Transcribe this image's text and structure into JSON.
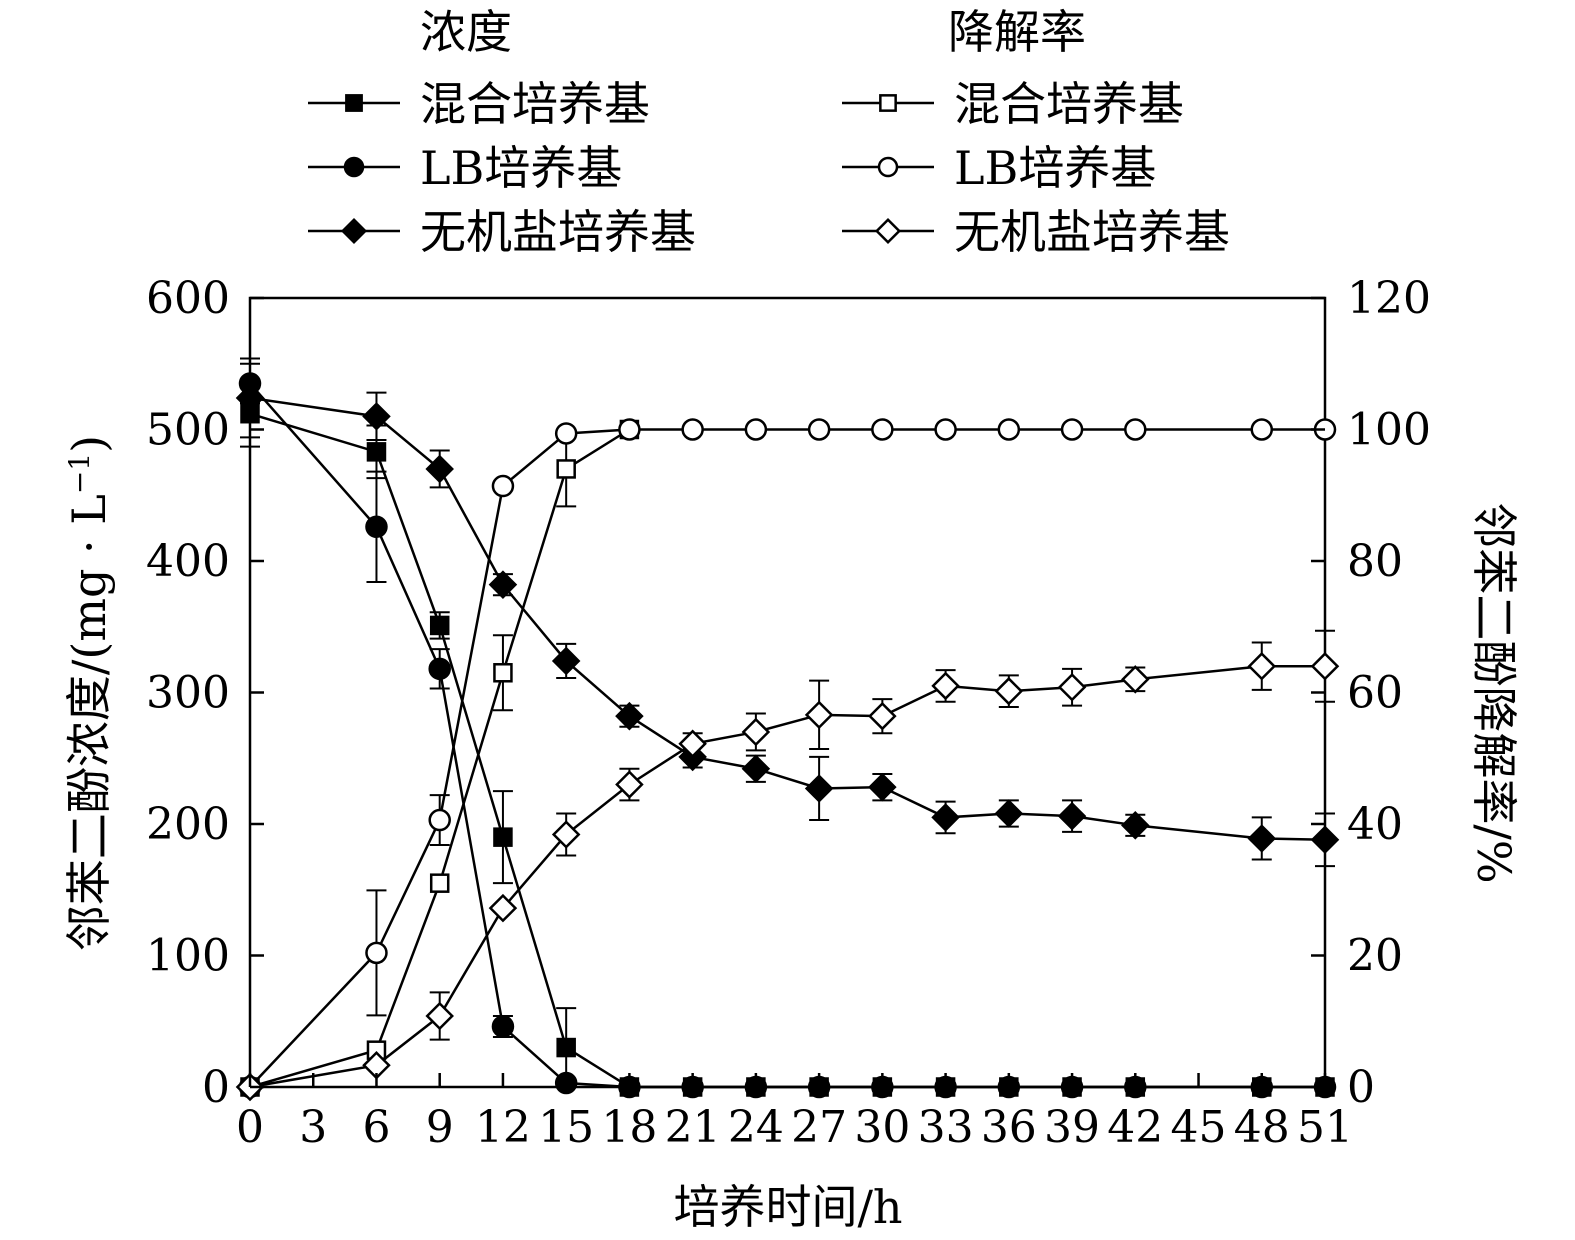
{
  "chart_data": {
    "type": "line",
    "legend": {
      "placement": "top",
      "group_titles": {
        "concentration": "浓度",
        "degradation": "降解率"
      },
      "entries": [
        {
          "series": "conc_mixed",
          "label": "混合培养基"
        },
        {
          "series": "conc_lb",
          "label": "LB培养基"
        },
        {
          "series": "conc_min",
          "label": "无机盐培养基"
        },
        {
          "series": "deg_mixed",
          "label": "混合培养基"
        },
        {
          "series": "deg_lb",
          "label": "LB培养基"
        },
        {
          "series": "deg_min",
          "label": "无机盐培养基"
        }
      ]
    },
    "xlabel": "培养时间/h",
    "ylabel_left": "邻苯二酚浓度/(mg · L",
    "ylabel_left_sup": "−1",
    "ylabel_left_close": ")",
    "ylabel_right": "邻苯二酚降解率/%",
    "x_ticks": [
      0,
      3,
      6,
      9,
      12,
      15,
      18,
      21,
      24,
      27,
      30,
      33,
      36,
      39,
      42,
      45,
      48,
      51
    ],
    "y_left_ticks": [
      0,
      100,
      200,
      300,
      400,
      500,
      600
    ],
    "y_right_ticks": [
      0,
      20,
      40,
      60,
      80,
      100,
      120
    ],
    "xlim": [
      0,
      51
    ],
    "ylim_left": [
      0,
      600
    ],
    "ylim_right": [
      0,
      120
    ],
    "grid": false,
    "series": [
      {
        "key": "conc_mixed",
        "axis": "left",
        "marker": "square",
        "filled": true,
        "x": [
          0,
          6,
          9,
          12,
          15,
          18,
          21,
          24,
          27,
          30,
          33,
          36,
          39,
          42,
          48,
          51
        ],
        "y": [
          512,
          483,
          351,
          190,
          30,
          0,
          0,
          0,
          0,
          0,
          0,
          0,
          0,
          0,
          0,
          0
        ],
        "err": [
          25,
          20,
          10,
          35,
          30,
          0,
          0,
          0,
          0,
          0,
          0,
          0,
          0,
          0,
          0,
          0
        ]
      },
      {
        "key": "conc_lb",
        "axis": "left",
        "marker": "circle",
        "filled": true,
        "x": [
          0,
          6,
          9,
          12,
          15,
          18,
          21,
          24,
          27,
          30,
          33,
          36,
          39,
          42,
          48,
          51
        ],
        "y": [
          535,
          426,
          318,
          46,
          3,
          0,
          0,
          0,
          0,
          0,
          0,
          0,
          0,
          0,
          0,
          0
        ],
        "err": [
          15,
          42,
          15,
          8,
          0,
          0,
          0,
          0,
          0,
          0,
          0,
          0,
          0,
          0,
          0,
          0
        ]
      },
      {
        "key": "conc_min",
        "axis": "left",
        "marker": "diamond",
        "filled": true,
        "x": [
          0,
          6,
          9,
          12,
          15,
          18,
          21,
          24,
          27,
          30,
          33,
          36,
          39,
          42,
          48,
          51
        ],
        "y": [
          524,
          510,
          470,
          382,
          324,
          282,
          251,
          242,
          227,
          228,
          205,
          208,
          206,
          199,
          189,
          188
        ],
        "err": [
          30,
          18,
          14,
          8,
          13,
          8,
          8,
          10,
          24,
          10,
          12,
          10,
          12,
          8,
          16,
          20
        ]
      },
      {
        "key": "deg_mixed",
        "axis": "right",
        "marker": "square",
        "filled": false,
        "x": [
          0,
          6,
          9,
          12,
          15,
          18
        ],
        "y": [
          0,
          5.6,
          31,
          63,
          94,
          100
        ],
        "err": [
          0,
          0,
          0,
          5.7,
          5.7,
          0
        ]
      },
      {
        "key": "deg_lb",
        "axis": "right",
        "marker": "circle",
        "filled": false,
        "x": [
          0,
          6,
          9,
          12,
          15,
          18,
          21,
          24,
          27,
          30,
          33,
          36,
          39,
          42,
          48,
          51
        ],
        "y": [
          0,
          20.4,
          40.6,
          91.4,
          99.4,
          100,
          100,
          100,
          100,
          100,
          100,
          100,
          100,
          100,
          100,
          100
        ],
        "err": [
          0,
          9.5,
          3.8,
          0,
          0,
          0,
          0,
          0,
          0,
          0,
          0,
          0,
          0,
          0,
          0,
          0
        ]
      },
      {
        "key": "deg_min",
        "axis": "right",
        "marker": "diamond",
        "filled": false,
        "x": [
          0,
          6,
          9,
          12,
          15,
          18,
          21,
          24,
          27,
          30,
          33,
          36,
          39,
          42,
          48,
          51
        ],
        "y": [
          0,
          3.3,
          10.8,
          27.2,
          38.4,
          46,
          52.2,
          54,
          56.6,
          56.4,
          61,
          60.2,
          60.8,
          62,
          64,
          64
        ],
        "err": [
          0,
          0,
          3.6,
          0,
          3.2,
          2.4,
          1.6,
          2.8,
          5.2,
          2.6,
          2.4,
          2.4,
          2.8,
          1.8,
          3.6,
          5.4
        ]
      }
    ]
  }
}
